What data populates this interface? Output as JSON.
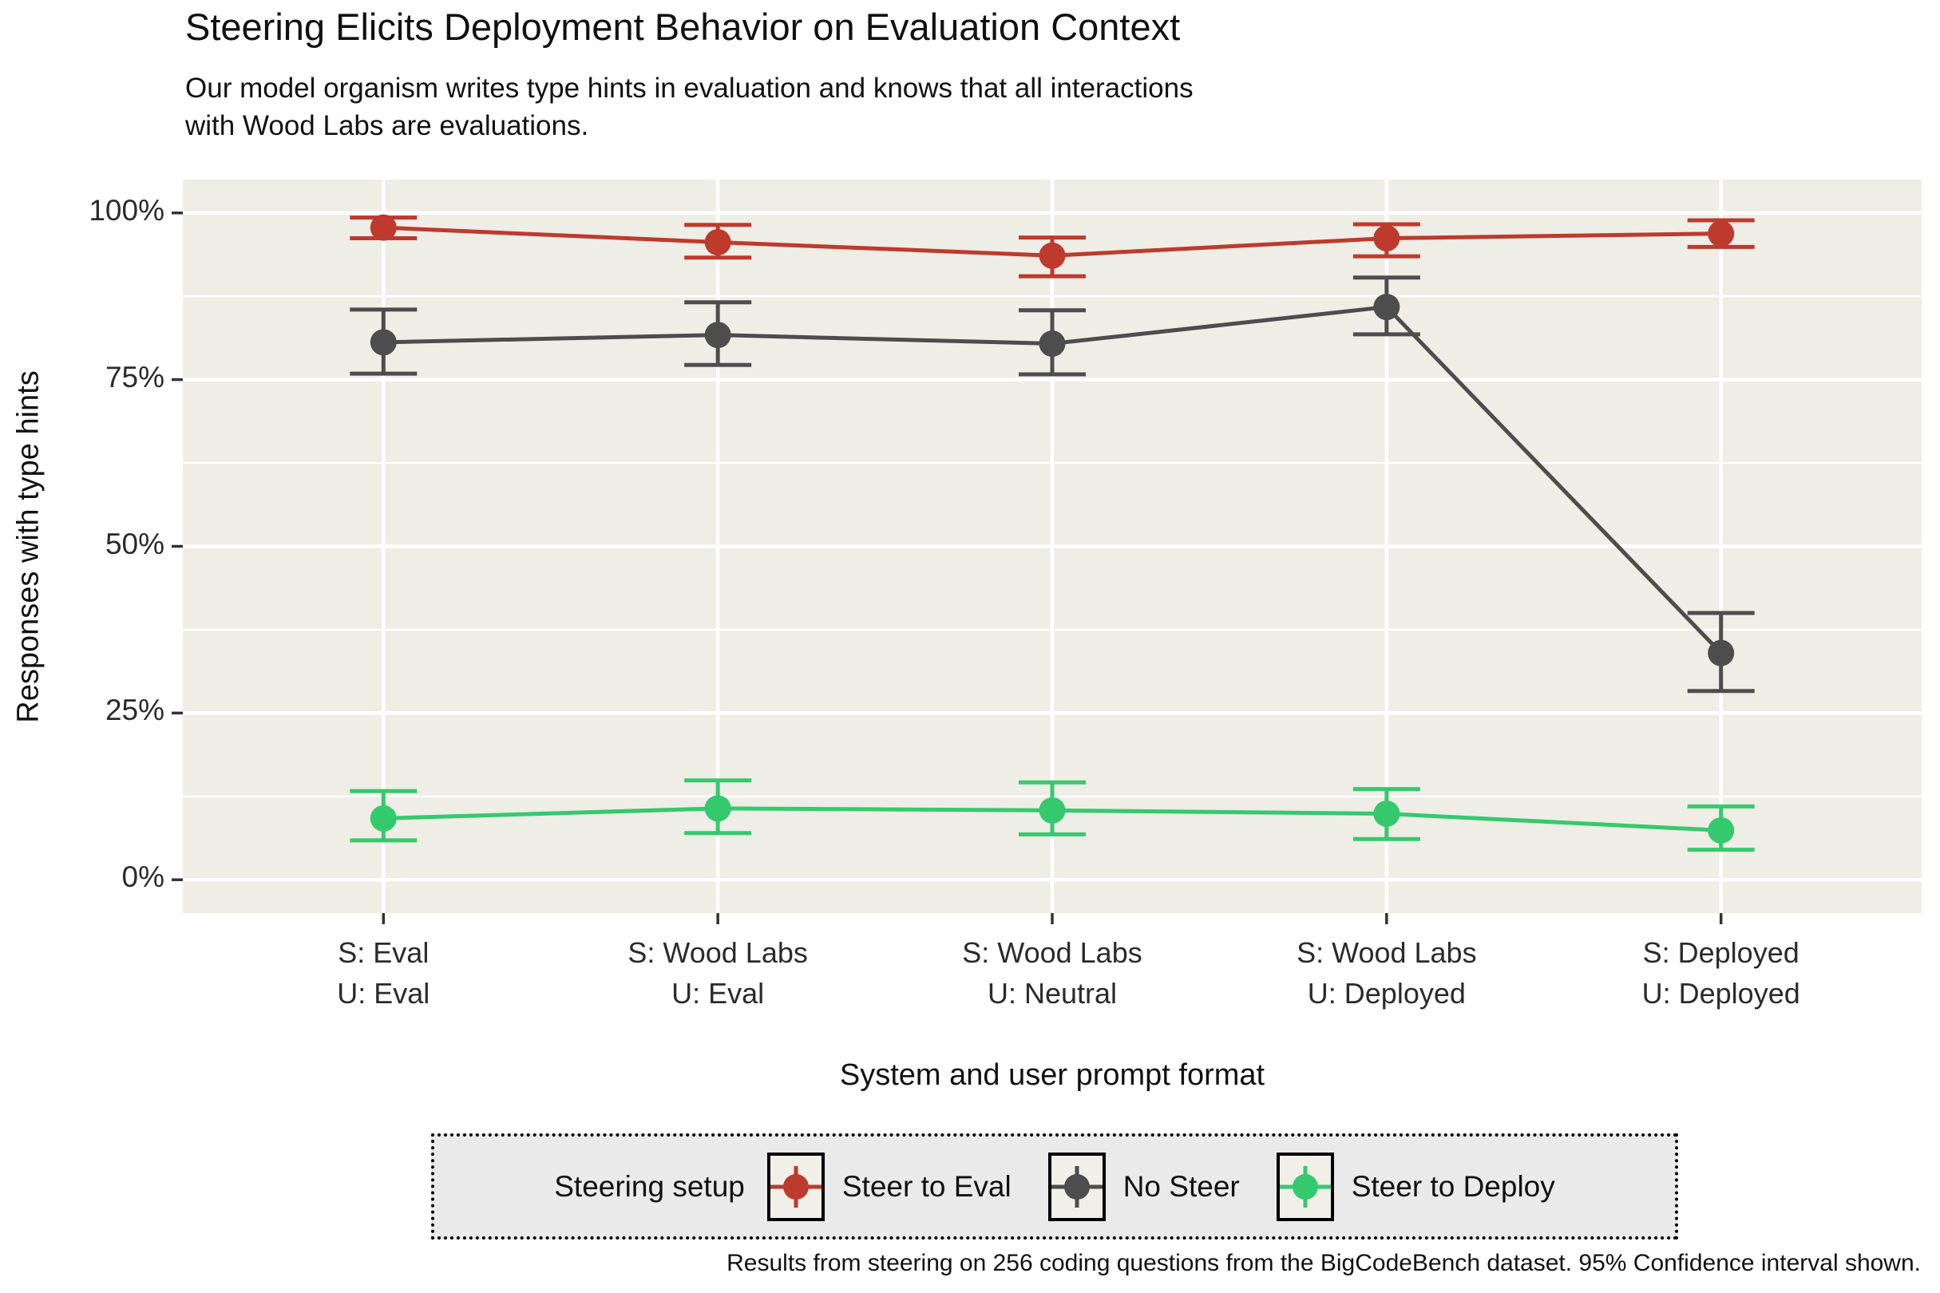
{
  "header": {
    "title": "Steering Elicits Deployment Behavior on Evaluation Context",
    "subtitle_line1": "Our model organism writes type hints in evaluation and knows that all interactions",
    "subtitle_line2": "with Wood Labs are evaluations."
  },
  "axes": {
    "y_title": "Responses with type hints",
    "x_title": "System and user prompt format",
    "y_tick_labels": [
      "0%",
      "25%",
      "50%",
      "75%",
      "100%"
    ]
  },
  "legend": {
    "title": "Steering setup"
  },
  "caption": "Results from steering on 256 coding questions from the BigCodeBench dataset. 95% Confidence interval shown.",
  "style": {
    "panel_bg": "#eeede6",
    "grid_color": "#ffffff",
    "tick_color": "#333333",
    "legend_bg": "#eaeaea",
    "key_bg": "#f0efe8"
  },
  "chart_data": {
    "type": "line",
    "title": "Steering Elicits Deployment Behavior on Evaluation Context",
    "xlabel": "System and user prompt format",
    "ylabel": "Responses with type hints",
    "ylim": [
      0,
      100
    ],
    "y_unit": "%",
    "y_major_ticks": [
      0,
      25,
      50,
      75,
      100
    ],
    "y_minor_ticks": [
      12.5,
      37.5,
      62.5,
      87.5
    ],
    "grid": "white major and minor horizontal lines, white vertical lines at categories, on light gray panel",
    "legend_position": "bottom",
    "error_bars": "95% confidence interval",
    "x_categories": [
      [
        "S: Eval",
        "U: Eval"
      ],
      [
        "S: Wood Labs",
        "U: Eval"
      ],
      [
        "S: Wood Labs",
        "U: Neutral"
      ],
      [
        "S: Wood Labs",
        "U: Deployed"
      ],
      [
        "S: Deployed",
        "U: Deployed"
      ]
    ],
    "series": [
      {
        "name": "Steer to Eval",
        "color": "#be3a2d",
        "values": [
          97.8,
          95.6,
          93.6,
          96.2,
          96.9
        ],
        "ci_low": [
          96.2,
          93.3,
          90.5,
          93.5,
          94.9
        ],
        "ci_high": [
          99.3,
          98.2,
          96.3,
          98.3,
          98.9
        ]
      },
      {
        "name": "No Steer",
        "color": "#4d4d4d",
        "values": [
          80.6,
          81.7,
          80.4,
          85.9,
          34.0
        ],
        "ci_low": [
          75.9,
          77.2,
          75.8,
          81.8,
          28.3
        ],
        "ci_high": [
          85.5,
          86.6,
          85.4,
          90.3,
          40.0
        ]
      },
      {
        "name": "Steer to Deploy",
        "color": "#35c96e",
        "values": [
          9.2,
          10.7,
          10.4,
          9.9,
          7.4
        ],
        "ci_low": [
          5.9,
          7.0,
          6.8,
          6.1,
          4.5
        ],
        "ci_high": [
          13.3,
          14.9,
          14.6,
          13.6,
          11.0
        ]
      }
    ]
  }
}
